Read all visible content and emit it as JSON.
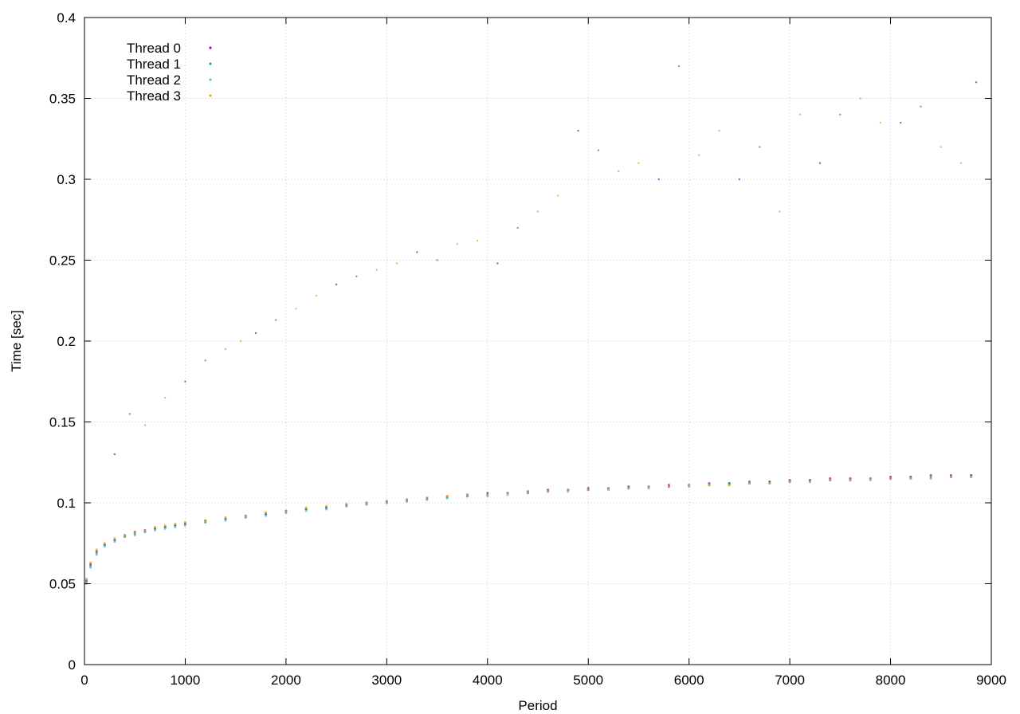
{
  "chart_data": {
    "type": "scatter",
    "title": "",
    "xlabel": "Period",
    "ylabel": "Time [sec]",
    "xlim": [
      0,
      9000
    ],
    "ylim": [
      0,
      0.4
    ],
    "x_ticks": [
      0,
      1000,
      2000,
      3000,
      4000,
      5000,
      6000,
      7000,
      8000,
      9000
    ],
    "y_ticks": [
      0,
      0.05,
      0.1,
      0.15,
      0.2,
      0.25,
      0.3,
      0.35,
      0.4
    ],
    "x_tick_labels": [
      "0",
      "1000",
      "2000",
      "3000",
      "4000",
      "5000",
      "6000",
      "7000",
      "8000",
      "9000"
    ],
    "y_tick_labels": [
      "0",
      "0.05",
      "0.1",
      "0.15",
      "0.2",
      "0.25",
      "0.3",
      "0.35",
      "0.4"
    ],
    "grid": true,
    "legend_position": "top-left",
    "series": [
      {
        "name": "Thread 0",
        "color": "#9400d3",
        "x": [
          20,
          60,
          120,
          200,
          300,
          400,
          500,
          600,
          700,
          800,
          900,
          1000,
          1200,
          1400,
          1600,
          1800,
          2000,
          2200,
          2400,
          2600,
          2800,
          3000,
          3200,
          3400,
          3600,
          3800,
          4000,
          4200,
          4400,
          4600,
          4800,
          5000,
          5200,
          5400,
          5600,
          5800,
          6000,
          6200,
          6400,
          6600,
          6800,
          7000,
          7200,
          7400,
          7600,
          7800,
          8000,
          8200,
          8400,
          8600,
          8800
        ],
        "y": [
          0.052,
          0.062,
          0.07,
          0.074,
          0.077,
          0.08,
          0.082,
          0.083,
          0.084,
          0.085,
          0.086,
          0.087,
          0.089,
          0.09,
          0.092,
          0.093,
          0.095,
          0.096,
          0.097,
          0.099,
          0.1,
          0.101,
          0.102,
          0.103,
          0.104,
          0.105,
          0.106,
          0.106,
          0.107,
          0.108,
          0.108,
          0.109,
          0.109,
          0.11,
          0.11,
          0.111,
          0.111,
          0.112,
          0.112,
          0.113,
          0.113,
          0.114,
          0.114,
          0.115,
          0.115,
          0.115,
          0.116,
          0.116,
          0.117,
          0.117,
          0.117
        ]
      },
      {
        "name": "Thread 1",
        "color": "#009e73",
        "x": [
          20,
          60,
          120,
          200,
          300,
          400,
          500,
          600,
          700,
          800,
          900,
          1000,
          1200,
          1400,
          1600,
          1800,
          2000,
          2200,
          2400,
          2600,
          2800,
          3000,
          3200,
          3400,
          3600,
          3800,
          4000,
          4200,
          4400,
          4600,
          4800,
          5000,
          5200,
          5400,
          5600,
          5800,
          6000,
          6200,
          6400,
          6600,
          6800,
          7000,
          7200,
          7400,
          7600,
          7800,
          8000,
          8200,
          8400,
          8600,
          8800
        ],
        "y": [
          0.051,
          0.061,
          0.069,
          0.074,
          0.077,
          0.079,
          0.081,
          0.082,
          0.084,
          0.085,
          0.086,
          0.087,
          0.088,
          0.09,
          0.091,
          0.093,
          0.094,
          0.096,
          0.097,
          0.098,
          0.099,
          0.1,
          0.101,
          0.102,
          0.103,
          0.104,
          0.105,
          0.106,
          0.106,
          0.107,
          0.108,
          0.108,
          0.109,
          0.109,
          0.11,
          0.11,
          0.111,
          0.111,
          0.112,
          0.112,
          0.113,
          0.113,
          0.114,
          0.114,
          0.114,
          0.115,
          0.115,
          0.116,
          0.116,
          0.116,
          0.117
        ]
      },
      {
        "name": "Thread 2",
        "color": "#56b4e9",
        "x": [
          20,
          60,
          120,
          200,
          300,
          400,
          500,
          600,
          700,
          800,
          900,
          1000,
          1200,
          1400,
          1600,
          1800,
          2000,
          2200,
          2400,
          2600,
          2800,
          3000,
          3200,
          3400,
          3600,
          3800,
          4000,
          4200,
          4400,
          4600,
          4800,
          5000,
          5200,
          5400,
          5600,
          5800,
          6000,
          6200,
          6400,
          6600,
          6800,
          7000,
          7200,
          7400,
          7600,
          7800,
          8000,
          8200,
          8400,
          8600,
          8800
        ],
        "y": [
          0.05,
          0.06,
          0.068,
          0.073,
          0.076,
          0.079,
          0.08,
          0.082,
          0.083,
          0.084,
          0.085,
          0.086,
          0.088,
          0.089,
          0.091,
          0.092,
          0.094,
          0.095,
          0.096,
          0.098,
          0.099,
          0.1,
          0.101,
          0.102,
          0.103,
          0.104,
          0.104,
          0.105,
          0.106,
          0.107,
          0.107,
          0.108,
          0.108,
          0.109,
          0.109,
          0.11,
          0.11,
          0.111,
          0.111,
          0.112,
          0.112,
          0.113,
          0.113,
          0.114,
          0.114,
          0.114,
          0.115,
          0.115,
          0.115,
          0.116,
          0.116
        ]
      },
      {
        "name": "Thread 3",
        "color": "#e69f00",
        "x": [
          20,
          60,
          120,
          200,
          300,
          400,
          500,
          600,
          700,
          800,
          900,
          1000,
          1200,
          1400,
          1600,
          1800,
          2000,
          2200,
          2400,
          2600,
          2800,
          3000,
          3200,
          3400,
          3600,
          3800,
          4000,
          4200,
          4400,
          4600,
          4800,
          5000,
          5200,
          5400,
          5600,
          5800,
          6000,
          6200,
          6400,
          6600,
          6800,
          7000,
          7200,
          7400,
          7600,
          7800,
          8000,
          8200,
          8400,
          8600,
          8800
        ],
        "y": [
          0.053,
          0.063,
          0.071,
          0.075,
          0.078,
          0.08,
          0.082,
          0.083,
          0.085,
          0.086,
          0.087,
          0.088,
          0.089,
          0.091,
          0.092,
          0.094,
          0.095,
          0.097,
          0.098,
          0.099,
          0.1,
          0.101,
          0.102,
          0.103,
          0.104,
          0.105,
          0.105,
          0.106,
          0.107,
          0.107,
          0.108,
          0.108,
          0.109,
          0.109,
          0.11,
          0.11,
          0.111,
          0.111,
          0.111,
          0.112,
          0.112,
          0.113,
          0.113,
          0.114,
          0.114,
          0.115,
          0.115,
          0.115,
          0.116,
          0.116,
          0.116
        ]
      }
    ],
    "outliers": {
      "x": [
        300,
        450,
        600,
        800,
        1000,
        1200,
        1400,
        1550,
        1700,
        1900,
        2100,
        2300,
        2500,
        2700,
        2900,
        3100,
        3300,
        3500,
        3700,
        3900,
        4100,
        4300,
        4500,
        4700,
        4900,
        5100,
        5300,
        5500,
        5700,
        5900,
        6100,
        6300,
        6500,
        6700,
        6900,
        7100,
        7300,
        7500,
        7700,
        7900,
        8100,
        8300,
        8500,
        8700,
        8850
      ],
      "y": [
        0.13,
        0.155,
        0.148,
        0.165,
        0.175,
        0.188,
        0.195,
        0.2,
        0.205,
        0.213,
        0.22,
        0.228,
        0.235,
        0.24,
        0.244,
        0.248,
        0.255,
        0.25,
        0.26,
        0.262,
        0.248,
        0.27,
        0.28,
        0.29,
        0.33,
        0.318,
        0.305,
        0.31,
        0.3,
        0.37,
        0.315,
        0.33,
        0.3,
        0.32,
        0.28,
        0.34,
        0.31,
        0.34,
        0.35,
        0.335,
        0.335,
        0.345,
        0.32,
        0.31,
        0.36
      ]
    }
  }
}
